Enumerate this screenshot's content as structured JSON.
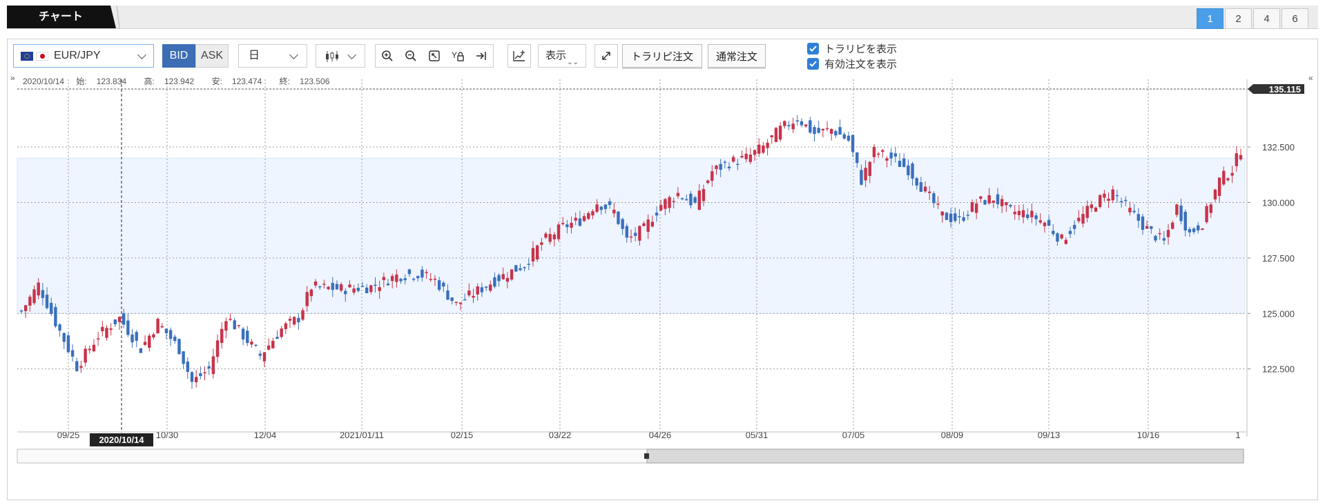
{
  "tabs": {
    "active_label": "チャート"
  },
  "layout_buttons": [
    "1",
    "2",
    "4",
    "6"
  ],
  "toolbar": {
    "symbol": "EUR/JPY",
    "bid_label": "BID",
    "ask_label": "ASK",
    "period": "日",
    "display_label": "表示",
    "trail_order_label": "トラリピ注文",
    "normal_order_label": "通常注文",
    "show_trail_label": "トラリピを表示",
    "show_orders_label": "有効注文を表示",
    "icons": [
      "zoom-in-icon",
      "zoom-out-icon",
      "fit-icon",
      "y-lock-icon",
      "scroll-end-icon",
      "indicator-icon",
      "fullscreen-icon"
    ]
  },
  "ohlc": {
    "date": "2020/10/14",
    "open_label": "始:",
    "open": "123.834",
    "high_label": "高:",
    "high": "123.942",
    "low_label": "安:",
    "low": "123.474",
    "close_label": "終:",
    "close": "123.506"
  },
  "crosshair_date": "2020/10/14",
  "price_badge": "135.115",
  "colors": {
    "up": "#c8334a",
    "down": "#3a6fbd",
    "band": "#eef5ff",
    "accent": "#4a9de8"
  },
  "chart_data": {
    "type": "candlestick",
    "y_ticks": [
      "132.500",
      "130.000",
      "127.500",
      "125.000",
      "122.500"
    ],
    "x_ticks": [
      "09/25",
      "10/30",
      "12/04",
      "2021/01/11",
      "02/15",
      "03/22",
      "04/26",
      "05/31",
      "07/05",
      "08/09",
      "09/13",
      "10/16",
      "1"
    ],
    "ylim": [
      120.5,
      135.3
    ],
    "range_band": [
      125.0,
      132.0
    ],
    "current_price": 135.115,
    "close_path": [
      [
        0,
        125.1
      ],
      [
        4,
        126.3
      ],
      [
        8,
        124.6
      ],
      [
        13,
        122.6
      ],
      [
        18,
        124.0
      ],
      [
        23,
        124.8
      ],
      [
        28,
        123.4
      ],
      [
        32,
        124.6
      ],
      [
        37,
        123.4
      ],
      [
        40,
        121.9
      ],
      [
        44,
        122.5
      ],
      [
        48,
        124.9
      ],
      [
        52,
        124.0
      ],
      [
        56,
        123.1
      ],
      [
        61,
        124.3
      ],
      [
        65,
        124.8
      ],
      [
        68,
        126.2
      ],
      [
        75,
        126.1
      ],
      [
        82,
        126.2
      ],
      [
        88,
        126.7
      ],
      [
        93,
        126.8
      ],
      [
        97,
        126.5
      ],
      [
        102,
        125.4
      ],
      [
        106,
        125.9
      ],
      [
        112,
        126.6
      ],
      [
        118,
        127.2
      ],
      [
        122,
        128.2
      ],
      [
        127,
        128.9
      ],
      [
        131,
        129.2
      ],
      [
        135,
        130.0
      ],
      [
        139,
        129.6
      ],
      [
        142,
        128.3
      ],
      [
        146,
        128.8
      ],
      [
        150,
        129.9
      ],
      [
        154,
        130.4
      ],
      [
        158,
        129.9
      ],
      [
        162,
        131.4
      ],
      [
        166,
        131.8
      ],
      [
        170,
        132.0
      ],
      [
        174,
        132.5
      ],
      [
        178,
        133.3
      ],
      [
        182,
        133.8
      ],
      [
        186,
        133.1
      ],
      [
        190,
        133.3
      ],
      [
        194,
        132.8
      ],
      [
        197,
        131.0
      ],
      [
        200,
        132.3
      ],
      [
        204,
        132.0
      ],
      [
        208,
        131.5
      ],
      [
        212,
        130.5
      ],
      [
        216,
        129.4
      ],
      [
        220,
        129.2
      ],
      [
        224,
        130.0
      ],
      [
        228,
        130.2
      ],
      [
        232,
        129.6
      ],
      [
        236,
        129.5
      ],
      [
        240,
        129.1
      ],
      [
        244,
        128.3
      ],
      [
        248,
        129.2
      ],
      [
        252,
        130.0
      ],
      [
        256,
        130.5
      ],
      [
        260,
        129.6
      ],
      [
        264,
        128.8
      ],
      [
        268,
        128.2
      ],
      [
        271,
        129.8
      ],
      [
        274,
        128.6
      ],
      [
        277,
        129.1
      ],
      [
        281,
        131.0
      ],
      [
        284,
        131.5
      ],
      [
        286,
        132.4
      ]
    ]
  }
}
